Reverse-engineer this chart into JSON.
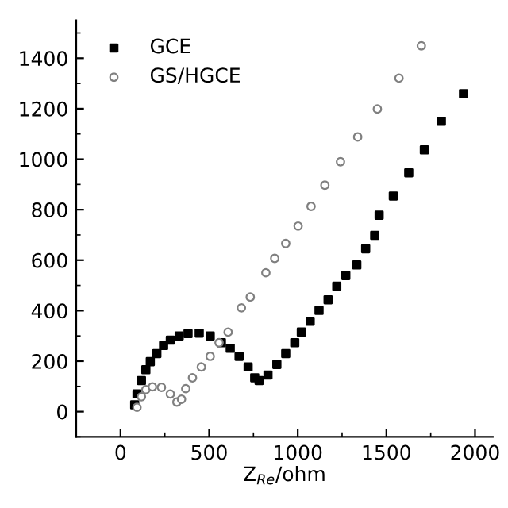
{
  "chart_data": {
    "type": "scatter",
    "xlabel": "Z$_{Re}$/ohm",
    "xlim": [
      -250,
      2100
    ],
    "xticks": [
      0,
      500,
      1000,
      1500,
      2000
    ],
    "ylim": [
      -100,
      1550
    ],
    "yticks": [
      0,
      200,
      400,
      600,
      800,
      1000,
      1200,
      1400
    ],
    "grid": false,
    "legend": "top left",
    "series": [
      {
        "name": "GCE",
        "color": "#000000",
        "marker": "square",
        "x": [
          80,
          93,
          118,
          143,
          168,
          205,
          243,
          281,
          331,
          381,
          444,
          506,
          569,
          619,
          669,
          720,
          757,
          782,
          832,
          882,
          932,
          983,
          1020,
          1070,
          1120,
          1171,
          1220,
          1271,
          1333,
          1383,
          1434,
          1459,
          1539,
          1626,
          1714,
          1810,
          1935
        ],
        "values": [
          27,
          70,
          123,
          166,
          198,
          230,
          262,
          283,
          300,
          309,
          311,
          300,
          273,
          251,
          219,
          177,
          134,
          123,
          145,
          187,
          230,
          273,
          315,
          358,
          401,
          443,
          497,
          539,
          581,
          645,
          698,
          778,
          854,
          946,
          1037,
          1150,
          1259
        ]
      },
      {
        "name": "GS/HGCE",
        "color": "#808080",
        "marker": "circle",
        "x": [
          93,
          118,
          143,
          180,
          231,
          281,
          318,
          344,
          368,
          406,
          456,
          506,
          556,
          607,
          682,
          732,
          820,
          870,
          932,
          1002,
          1075,
          1153,
          1241,
          1338,
          1449,
          1571,
          1697
        ],
        "values": [
          17,
          59,
          87,
          98,
          96,
          70,
          38,
          49,
          91,
          134,
          177,
          219,
          273,
          315,
          411,
          454,
          550,
          607,
          666,
          735,
          813,
          897,
          990,
          1088,
          1199,
          1321,
          1449
        ]
      }
    ]
  }
}
